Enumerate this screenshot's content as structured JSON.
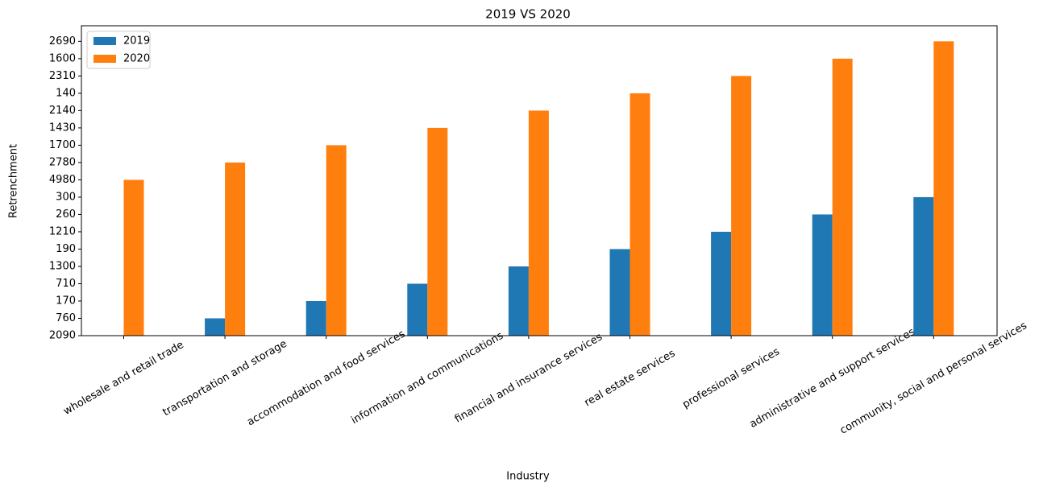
{
  "chart_data": {
    "type": "bar",
    "title": "2019 VS 2020",
    "x_label": "Industry",
    "y_label": "Retrenchment",
    "categories": [
      "wholesale and retail trade",
      "transportation and storage",
      "accommodation and food services",
      "information and communications",
      "financial and insurance services",
      "real estate services",
      "professional services",
      "administrative and support services",
      "community, social and personal services"
    ],
    "series": [
      {
        "name": "2019",
        "color": "#1f77b4",
        "values": [
          0,
          1,
          2,
          3,
          4,
          5,
          6,
          7,
          8
        ]
      },
      {
        "name": "2020",
        "color": "#ff7f0e",
        "values": [
          9,
          10,
          11,
          12,
          13,
          14,
          15,
          16,
          17
        ]
      }
    ],
    "ylim": [
      0,
      17.9
    ],
    "yticks": [
      {
        "value": 0,
        "label": "2090"
      },
      {
        "value": 1,
        "label": "760"
      },
      {
        "value": 2,
        "label": "170"
      },
      {
        "value": 3,
        "label": "710"
      },
      {
        "value": 4,
        "label": "1300"
      },
      {
        "value": 5,
        "label": "190"
      },
      {
        "value": 6,
        "label": "1210"
      },
      {
        "value": 7,
        "label": "260"
      },
      {
        "value": 8,
        "label": "300"
      },
      {
        "value": 9,
        "label": "4980"
      },
      {
        "value": 10,
        "label": "2780"
      },
      {
        "value": 11,
        "label": "1700"
      },
      {
        "value": 12,
        "label": "1430"
      },
      {
        "value": 13,
        "label": "2140"
      },
      {
        "value": 14,
        "label": "140"
      },
      {
        "value": 15,
        "label": "2310"
      },
      {
        "value": 16,
        "label": "1600"
      },
      {
        "value": 17,
        "label": "2690"
      }
    ],
    "legend": "upper left"
  }
}
